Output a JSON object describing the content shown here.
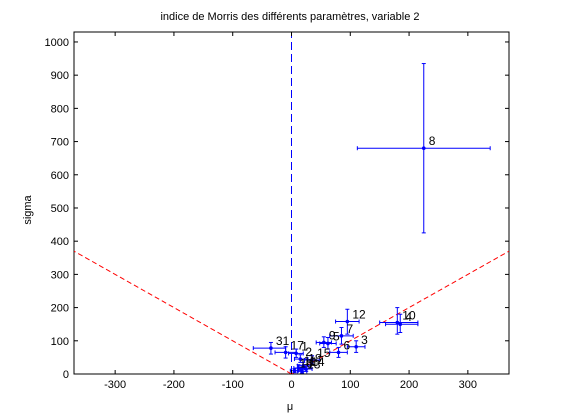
{
  "chart_data": {
    "type": "scatter",
    "title": "indice de Morris des différents paramètres, variable 2",
    "xlabel": "μ",
    "ylabel": "sigma",
    "xlim": [
      -370,
      370
    ],
    "ylim": [
      0,
      1030
    ],
    "xticks": [
      -300,
      -200,
      -100,
      0,
      100,
      200,
      300
    ],
    "yticks": [
      0,
      100,
      200,
      300,
      400,
      500,
      600,
      700,
      800,
      900,
      1000
    ],
    "grid": false,
    "colors": {
      "points": "#0000ff",
      "cone": "#ff0000",
      "zero_line": "#0000ff",
      "text": "#000000"
    },
    "reference_lines": [
      {
        "kind": "cone",
        "style": "dashed",
        "color": "red",
        "slope": 1
      },
      {
        "kind": "vertical",
        "x": 0,
        "style": "dashed",
        "color": "blue"
      }
    ],
    "points": [
      {
        "label": "8",
        "mu": 225,
        "sigma": 680,
        "mu_err": [
          112,
          338
        ],
        "sigma_err": [
          425,
          935
        ]
      },
      {
        "label": "10",
        "mu": 180,
        "sigma": 155,
        "mu_err": [
          150,
          215
        ],
        "sigma_err": [
          120,
          200
        ]
      },
      {
        "label": "4",
        "mu": 185,
        "sigma": 150,
        "mu_err": [
          160,
          215
        ],
        "sigma_err": [
          125,
          180
        ]
      },
      {
        "label": "12",
        "mu": 95,
        "sigma": 158,
        "mu_err": [
          75,
          115
        ],
        "sigma_err": [
          120,
          195
        ]
      },
      {
        "label": "7",
        "mu": 85,
        "sigma": 115,
        "mu_err": [
          65,
          105
        ],
        "sigma_err": [
          90,
          140
        ]
      },
      {
        "label": "3",
        "mu": 110,
        "sigma": 82,
        "mu_err": [
          95,
          125
        ],
        "sigma_err": [
          65,
          100
        ]
      },
      {
        "label": "6",
        "mu": 80,
        "sigma": 65,
        "mu_err": [
          65,
          95
        ],
        "sigma_err": [
          50,
          80
        ]
      },
      {
        "label": "5",
        "mu": 62,
        "sigma": 92,
        "mu_err": [
          48,
          76
        ],
        "sigma_err": [
          75,
          110
        ]
      },
      {
        "label": "9",
        "mu": 55,
        "sigma": 95,
        "mu_err": [
          42,
          68
        ],
        "sigma_err": [
          80,
          112
        ]
      },
      {
        "label": "31",
        "mu": -35,
        "sigma": 78,
        "mu_err": [
          -65,
          -10
        ],
        "sigma_err": [
          60,
          95
        ]
      },
      {
        "label": "17",
        "mu": -10,
        "sigma": 65,
        "mu_err": [
          -28,
          8
        ],
        "sigma_err": [
          48,
          82
        ]
      },
      {
        "label": "1",
        "mu": 8,
        "sigma": 62,
        "mu_err": [
          -5,
          20
        ],
        "sigma_err": [
          50,
          75
        ]
      },
      {
        "label": "2",
        "mu": 15,
        "sigma": 45,
        "mu_err": [
          5,
          28
        ],
        "sigma_err": [
          35,
          58
        ]
      },
      {
        "label": "15",
        "mu": 35,
        "sigma": 42,
        "mu_err": [
          22,
          48
        ],
        "sigma_err": [
          30,
          55
        ]
      },
      {
        "label": "18",
        "mu": 20,
        "sigma": 25,
        "mu_err": [
          10,
          32
        ],
        "sigma_err": [
          15,
          35
        ]
      },
      {
        "label": "11",
        "mu": 12,
        "sigma": 18,
        "mu_err": [
          4,
          22
        ],
        "sigma_err": [
          10,
          28
        ]
      },
      {
        "label": "14",
        "mu": 25,
        "sigma": 15,
        "mu_err": [
          15,
          35
        ],
        "sigma_err": [
          8,
          22
        ]
      },
      {
        "label": "16",
        "mu": 5,
        "sigma": 10,
        "mu_err": [
          -2,
          12
        ],
        "sigma_err": [
          4,
          16
        ]
      },
      {
        "label": "13",
        "mu": 18,
        "sigma": 8,
        "mu_err": [
          10,
          26
        ],
        "sigma_err": [
          3,
          14
        ]
      }
    ]
  }
}
